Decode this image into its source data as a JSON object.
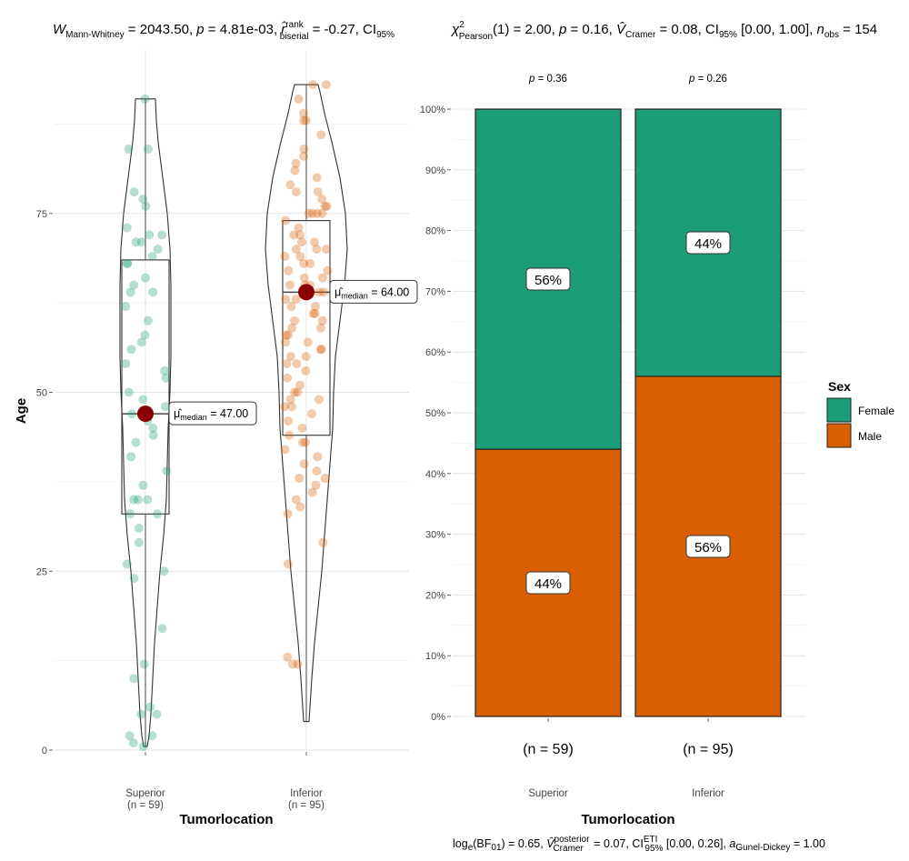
{
  "chart_data": [
    {
      "type": "violin-box-scatter",
      "subtitle": {
        "stat_symbol": "W",
        "stat_sub": "Mann-Whitney",
        "stat_val": " = 2043.50, ",
        "p_label": "p",
        "p_val": " = 4.81e-03, ",
        "r_symbol": "r̂",
        "r_sup": "rank",
        "r_sub": "biserial",
        "r_val": " = -0.27, CI",
        "ci_sub": "95%"
      },
      "xlabel": "Tumorlocation",
      "ylabel": "Age",
      "ylim": [
        0,
        94
      ],
      "yticks": [
        0,
        25,
        50,
        75
      ],
      "categories": [
        "Superior",
        "Inferior"
      ],
      "counts": [
        "(n = 59)",
        "(n = 95)"
      ],
      "colors": [
        "#1B9E77",
        "#D95F02"
      ],
      "box": [
        {
          "q1": 33,
          "median": 47,
          "q3": 68.5,
          "min": 0.5,
          "max": 91
        },
        {
          "q1": 44,
          "median": 64,
          "q3": 74,
          "min": 4,
          "max": 93
        }
      ],
      "median_label": [
        "μ̂",
        "median",
        " = 47.00",
        " = 64.00"
      ],
      "points": [
        [
          91,
          84,
          84,
          78,
          77,
          76,
          73,
          72,
          72,
          71,
          71,
          70,
          69,
          68,
          66,
          65,
          64,
          64,
          60,
          58,
          56,
          54,
          53,
          52,
          50,
          49,
          48,
          47,
          47,
          46,
          45,
          43,
          41,
          39,
          37,
          35,
          35,
          35,
          33,
          33,
          31,
          29,
          26,
          25,
          24,
          17,
          12,
          10,
          6,
          5,
          5,
          2,
          2,
          1,
          0.5,
          68,
          62,
          57,
          44
        ],
        [
          93,
          93,
          91,
          89,
          88,
          88,
          86,
          84,
          83,
          82,
          81,
          80,
          79,
          78,
          78,
          77,
          76,
          76,
          75,
          75,
          75,
          75,
          74,
          73,
          72,
          72,
          71,
          71,
          70,
          70,
          70,
          69,
          69,
          68,
          68,
          67,
          67,
          66,
          66,
          65,
          65,
          65,
          64,
          64,
          63,
          63,
          62,
          62,
          61,
          61,
          60,
          60,
          59,
          59,
          58,
          58,
          57,
          57,
          56,
          56,
          55,
          55,
          54,
          54,
          53,
          52,
          51,
          50,
          50,
          49,
          49,
          48,
          48,
          47,
          46,
          45,
          44,
          43,
          43,
          42,
          41,
          40,
          39,
          38,
          38,
          37,
          36,
          35,
          34,
          33,
          29,
          26,
          13,
          12,
          12
        ]
      ]
    },
    {
      "type": "stacked-bar",
      "subtitle": {
        "chi_symbol": "χ",
        "chi_sup": "2",
        "chi_sub": "Pearson",
        "chi_val": "(1) = 2.00, ",
        "p_label": "p",
        "p_val": " = 0.16, ",
        "v_symbol": "V̂",
        "v_sub": "Cramer",
        "v_val": " = 0.08, CI",
        "ci_sub": "95%",
        "ci_val": " [0.00, 1.00], ",
        "n_label": "n",
        "n_sub": "obs",
        "n_val": " = 154"
      },
      "caption": {
        "bf_pre": "log",
        "bf_sub": "e",
        "bf_mid": "(BF",
        "bf_sub2": "01",
        "bf_val": ") = 0.65, ",
        "v_symbol": "V̂",
        "v_sup": "posterior",
        "v_sub": "Cramer",
        "v_val": " = 0.07, CI",
        "ci_sup": "ETI",
        "ci_sub": "95%",
        "ci_val": " [0.00, 0.26], ",
        "a_label": "a",
        "a_sub": "Gunel-Dickey",
        "a_val": " = 1.00"
      },
      "xlabel": "Tumorlocation",
      "categories": [
        "Superior",
        "Inferior"
      ],
      "counts": [
        "(n = 59)",
        "(n = 95)"
      ],
      "p_labels": [
        [
          "p",
          " = 0.36"
        ],
        [
          "p",
          " = 0.26"
        ]
      ],
      "ylim": [
        0,
        100
      ],
      "yticks": [
        "0%",
        "10%",
        "20%",
        "30%",
        "40%",
        "50%",
        "60%",
        "70%",
        "80%",
        "90%",
        "100%"
      ],
      "legend": {
        "title": "Sex",
        "placement": "right"
      },
      "series": [
        {
          "name": "Female",
          "color": "#1B9E77",
          "values": [
            56,
            44
          ],
          "labels": [
            "56%",
            "44%"
          ]
        },
        {
          "name": "Male",
          "color": "#D95F02",
          "values": [
            44,
            56
          ],
          "labels": [
            "44%",
            "56%"
          ]
        }
      ]
    }
  ]
}
